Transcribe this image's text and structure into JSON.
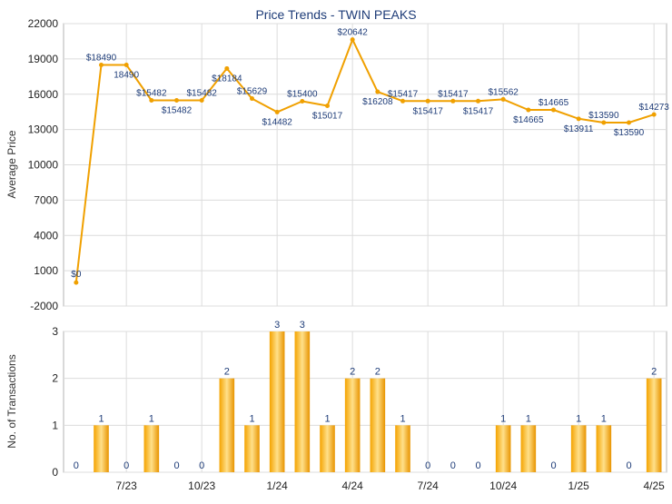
{
  "chart_data": [
    {
      "type": "line",
      "title": "Price Trends - TWIN PEAKS",
      "xlabel": "",
      "ylabel": "Average Price",
      "ylim": [
        -2000,
        22000
      ],
      "yticks": [
        -2000,
        1000,
        4000,
        7000,
        10000,
        13000,
        16000,
        19000,
        22000
      ],
      "grid": true,
      "x_tick_labels": [
        "7/23",
        "10/23",
        "1/24",
        "4/24",
        "7/24",
        "10/24",
        "1/25",
        "4/25"
      ],
      "series": [
        {
          "color": "#f0a000",
          "values": [
            0,
            18490,
            18490,
            15482,
            15482,
            15482,
            18184,
            15629,
            14482,
            15400,
            15017,
            20642,
            16208,
            15417,
            15417,
            15417,
            15417,
            15562,
            14665,
            14665,
            13911,
            13590,
            13590,
            14273
          ],
          "labels": [
            "$0",
            "$18490",
            "18490",
            "$15482",
            "$15482",
            "$15482",
            "$18184",
            "$15629",
            "$14482",
            "$15400",
            "$15017",
            "$20642",
            "$16208",
            "$15417",
            "$15417",
            "$15417",
            "$15417",
            "$15562",
            "$14665",
            "$14665",
            "$13911",
            "$13590",
            "$13590",
            "$14273"
          ]
        }
      ]
    },
    {
      "type": "bar",
      "title": "",
      "xlabel": "",
      "ylabel": "No. of Transactions",
      "ylim": [
        0,
        3
      ],
      "yticks": [
        0,
        1,
        2,
        3
      ],
      "grid": true,
      "x_tick_labels": [
        "7/23",
        "10/23",
        "1/24",
        "4/24",
        "7/24",
        "10/24",
        "1/25",
        "4/25"
      ],
      "values": [
        0,
        1,
        0,
        1,
        0,
        0,
        2,
        1,
        3,
        3,
        1,
        2,
        2,
        1,
        0,
        0,
        0,
        1,
        1,
        0,
        1,
        1,
        0,
        2
      ],
      "color": "#f0a000"
    }
  ]
}
